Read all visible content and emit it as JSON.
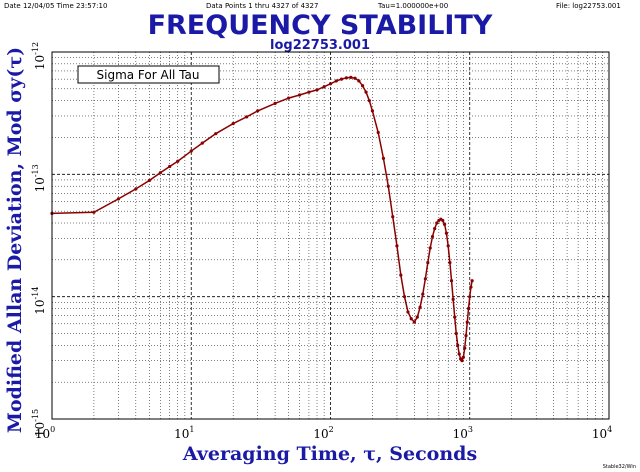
{
  "header": {
    "date": "Date  12/04/05   Time  23:57:10",
    "points": "Data Points 1 thru 4327 of 4327",
    "tau": "Tau=1.000000e+00",
    "file": "File: log22753.001"
  },
  "footer": {
    "stamp": "Stable32/Win"
  },
  "chart_data": {
    "type": "line",
    "title": "FREQUENCY STABILITY",
    "subtitle": "log22753.001",
    "xlabel": "Averaging Time, τ, Seconds",
    "ylabel": "Modified Allan Deviation, Mod σy(τ)",
    "annotation": "Sigma For All Tau",
    "xscale": "log",
    "yscale": "log",
    "xlim": [
      1,
      10000
    ],
    "ylim": [
      1e-15,
      1e-12
    ],
    "grid": true,
    "series_color": "#8b0000",
    "x_ticks": [
      {
        "base": "10",
        "exp": "0",
        "value": 1
      },
      {
        "base": "10",
        "exp": "1",
        "value": 10
      },
      {
        "base": "10",
        "exp": "2",
        "value": 100
      },
      {
        "base": "10",
        "exp": "3",
        "value": 1000
      },
      {
        "base": "10",
        "exp": "4",
        "value": 10000
      }
    ],
    "y_ticks": [
      {
        "base": "10",
        "exp": "-15",
        "value": 1e-15
      },
      {
        "base": "10",
        "exp": "-14",
        "value": 1e-14
      },
      {
        "base": "10",
        "exp": "-13",
        "value": 1e-13
      },
      {
        "base": "10",
        "exp": "-12",
        "value": 1e-12
      }
    ],
    "series": [
      {
        "x": [
          1,
          2,
          3,
          4,
          5,
          6,
          7,
          8,
          10,
          12,
          15,
          20,
          25,
          30,
          40,
          50,
          60,
          70,
          80,
          90,
          100,
          110,
          120,
          130,
          140,
          150,
          160,
          170,
          180,
          190,
          200,
          220,
          240,
          260,
          280,
          300,
          320,
          340,
          360,
          380,
          400,
          420,
          440,
          460,
          480,
          500,
          520,
          540,
          560,
          580,
          600,
          620,
          640,
          660,
          680,
          700,
          720,
          740,
          760,
          780,
          800,
          820,
          840,
          860,
          880,
          900,
          920,
          940,
          960,
          980,
          1000,
          1020,
          1040
        ],
        "y": [
          4.8e-14,
          4.9e-14,
          6.3e-14,
          7.6e-14,
          8.9e-14,
          1.03e-13,
          1.16e-13,
          1.28e-13,
          1.55e-13,
          1.8e-13,
          2.15e-13,
          2.6e-13,
          2.95e-13,
          3.3e-13,
          3.8e-13,
          4.2e-13,
          4.45e-13,
          4.7e-13,
          4.9e-13,
          5.2e-13,
          5.5e-13,
          5.8e-13,
          6e-13,
          6.15e-13,
          6.2e-13,
          6.1e-13,
          5.8e-13,
          5.3e-13,
          4.7e-13,
          4e-13,
          3.3e-13,
          2.2e-13,
          1.35e-13,
          8e-14,
          4.5e-14,
          2.6e-14,
          1.5e-14,
          1e-14,
          7.5e-15,
          6.6e-15,
          6.2e-15,
          6.8e-15,
          8.2e-15,
          1.05e-14,
          1.4e-14,
          1.9e-14,
          2.5e-14,
          3.1e-14,
          3.6e-14,
          4e-14,
          4.2e-14,
          4.3e-14,
          4.2e-14,
          3.9e-14,
          3.3e-14,
          2.6e-14,
          1.9e-14,
          1.35e-14,
          9.5e-15,
          6.8e-15,
          5e-15,
          4e-15,
          3.4e-15,
          3.1e-15,
          3e-15,
          3.2e-15,
          3.8e-15,
          4.8e-15,
          6.2e-15,
          8e-15,
          1e-14,
          1.2e-14,
          1.35e-14
        ]
      }
    ]
  }
}
